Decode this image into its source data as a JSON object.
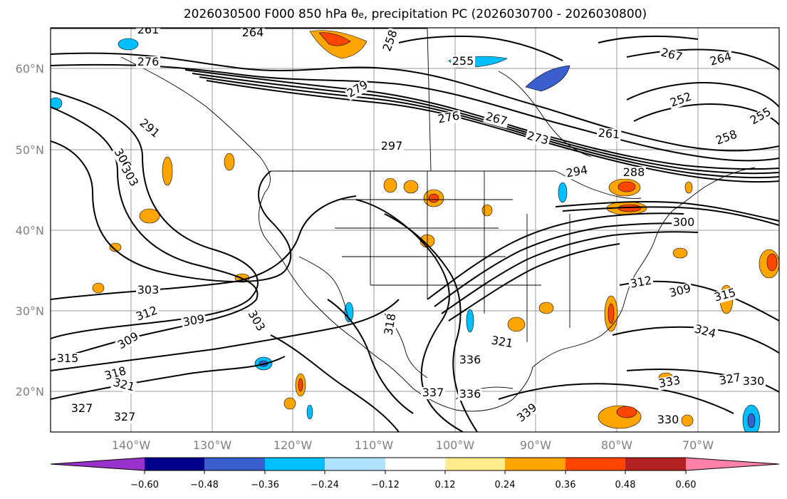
{
  "title": {
    "prefix": "2026030500 F000 850 hPa θ",
    "subscript": "e",
    "suffix": ", precipitation PC (2026030700 - 2026030800)"
  },
  "lat_ticks": [
    "60°N",
    "50°N",
    "40°N",
    "30°N",
    "20°N"
  ],
  "lon_ticks": [
    "140°W",
    "130°W",
    "120°W",
    "110°W",
    "100°W",
    "90°W",
    "80°W",
    "70°W"
  ],
  "colorbar": {
    "ticks": [
      "−0.60",
      "−0.48",
      "−0.36",
      "−0.24",
      "−0.12",
      "0.12",
      "0.24",
      "0.36",
      "0.48",
      "0.60"
    ],
    "colors": [
      "#9932CC",
      "#00008B",
      "#3A5FCD",
      "#00BFFF",
      "#B0E2FF",
      "#FFFFFF",
      "#FFEC8B",
      "#FFA500",
      "#FF4500",
      "#B22222",
      "#FF82AB"
    ]
  },
  "contour_labels": [
    "261",
    "264",
    "276",
    "258",
    "255",
    "267",
    "264",
    "279",
    "252",
    "255",
    "291",
    "276",
    "267",
    "273",
    "261",
    "297",
    "258",
    "306",
    "303",
    "294",
    "288",
    "300",
    "303",
    "312",
    "309",
    "303",
    "309",
    "315",
    "318",
    "321",
    "327",
    "318",
    "324",
    "321",
    "327",
    "336",
    "315",
    "312",
    "309",
    "337",
    "330",
    "327",
    "330",
    "333",
    "336",
    "339"
  ]
}
